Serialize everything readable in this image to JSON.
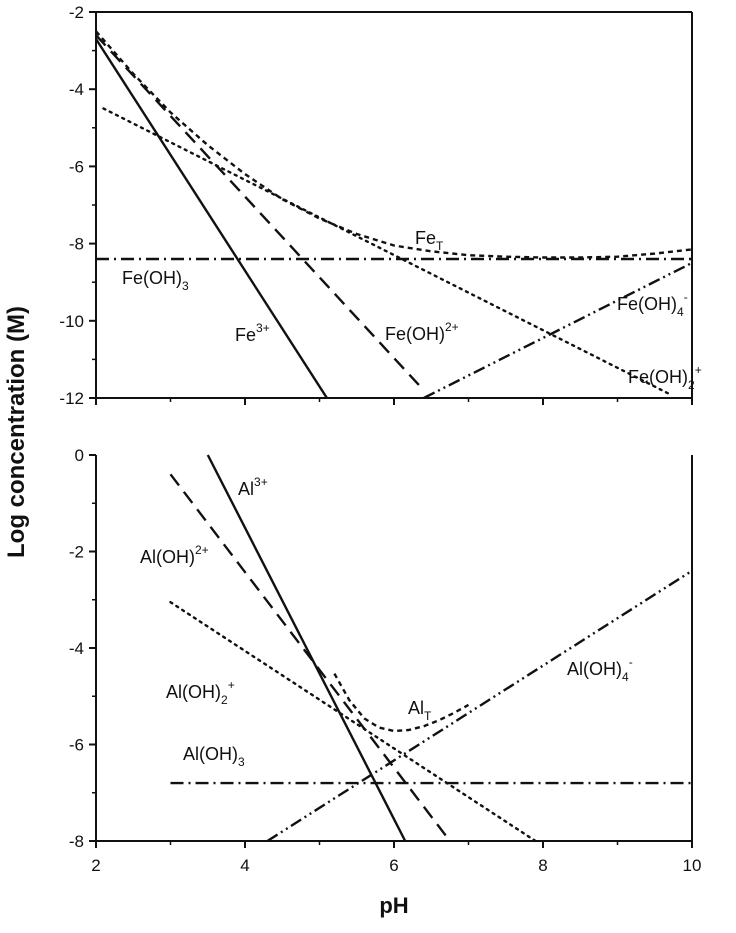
{
  "chart_data": [
    {
      "type": "line",
      "panel": "top",
      "title": "",
      "xlabel": "pH",
      "ylabel": "Log concentration (M)",
      "xlim": [
        2,
        10
      ],
      "ylim": [
        -12,
        -2
      ],
      "xticks": [
        2,
        4,
        6,
        8,
        10
      ],
      "yticks": [
        -2,
        -4,
        -6,
        -8,
        -10,
        -12
      ],
      "ytick_labels": [
        "-2",
        "-4",
        "-6",
        "-8",
        "-10",
        "-12"
      ],
      "grid": false,
      "series": [
        {
          "key": "fe3",
          "name": "Fe3+",
          "style": "solid",
          "x": [
            2.0,
            5.1
          ],
          "y": [
            -2.7,
            -12.0
          ]
        },
        {
          "key": "feoh2",
          "name": "Fe(OH)2+",
          "style": "dash",
          "x": [
            2.0,
            6.4
          ],
          "y": [
            -2.6,
            -11.8
          ]
        },
        {
          "key": "feoh2plus",
          "name": "Fe(OH)2+",
          "style": "dot",
          "x": [
            2.1,
            9.7
          ],
          "y": [
            -4.5,
            -11.9
          ]
        },
        {
          "key": "feoh3",
          "name": "Fe(OH)3",
          "style": "dashdot",
          "x": [
            2.0,
            10.0
          ],
          "y": [
            -8.4,
            -8.4
          ]
        },
        {
          "key": "feoh4",
          "name": "Fe(OH)4-",
          "style": "dashdotdot",
          "x": [
            6.4,
            10.0
          ],
          "y": [
            -12.0,
            -8.5
          ]
        },
        {
          "key": "fet",
          "name": "FeT",
          "style": "shortdash",
          "x": [
            2.0,
            2.5,
            3.0,
            3.5,
            4.0,
            4.5,
            5.0,
            5.5,
            6.0,
            6.5,
            7.0,
            7.5,
            8.0,
            8.5,
            9.0,
            9.5,
            10.0
          ],
          "y": [
            -2.5,
            -3.6,
            -4.6,
            -5.45,
            -6.2,
            -6.85,
            -7.35,
            -7.75,
            -8.05,
            -8.2,
            -8.3,
            -8.34,
            -8.36,
            -8.36,
            -8.34,
            -8.26,
            -8.15
          ]
        }
      ],
      "labels": [
        {
          "base": "Fe",
          "sup": "3+",
          "sub": ""
        },
        {
          "base": "Fe(OH)",
          "sup": "2+",
          "sub": ""
        },
        {
          "base": "Fe(OH)",
          "sup": "+",
          "sub": "2"
        },
        {
          "base": "Fe(OH)",
          "sup": "",
          "sub": "3"
        },
        {
          "base": "Fe(OH)",
          "sup": "-",
          "sub": "4"
        },
        {
          "base": "Fe",
          "sup": "",
          "sub": "T"
        }
      ]
    },
    {
      "type": "line",
      "panel": "bottom",
      "title": "",
      "xlabel": "pH",
      "ylabel": "Log concentration (M)",
      "xlim": [
        2,
        10
      ],
      "ylim": [
        -8,
        0
      ],
      "xticks": [
        2,
        4,
        6,
        8,
        10
      ],
      "xtick_labels": [
        "2",
        "4",
        "6",
        "8",
        "10"
      ],
      "yticks": [
        0,
        -2,
        -4,
        -6,
        -8
      ],
      "ytick_labels": [
        "0",
        "-2",
        "-4",
        "-6",
        "-8"
      ],
      "grid": false,
      "series": [
        {
          "key": "al3",
          "name": "Al3+",
          "style": "solid",
          "x": [
            3.5,
            6.15
          ],
          "y": [
            0.0,
            -8.0
          ]
        },
        {
          "key": "aloh2",
          "name": "Al(OH)2+",
          "style": "dash",
          "x": [
            3.0,
            6.75
          ],
          "y": [
            -0.4,
            -8.0
          ]
        },
        {
          "key": "aloh2plus",
          "name": "Al(OH)2+",
          "style": "dot",
          "x": [
            3.0,
            7.9
          ],
          "y": [
            -3.05,
            -8.0
          ]
        },
        {
          "key": "aloh3",
          "name": "Al(OH)3",
          "style": "dashdot",
          "x": [
            3.0,
            10.0
          ],
          "y": [
            -6.8,
            -6.8
          ]
        },
        {
          "key": "aloh4",
          "name": "Al(OH)4-",
          "style": "dashdotdot",
          "x": [
            4.3,
            10.0
          ],
          "y": [
            -8.0,
            -2.4
          ]
        },
        {
          "key": "alt",
          "name": "AlT",
          "style": "shortdash",
          "x": [
            5.2,
            5.4,
            5.6,
            5.8,
            6.0,
            6.2,
            6.4,
            6.6,
            6.8,
            7.0
          ],
          "y": [
            -4.53,
            -5.08,
            -5.46,
            -5.65,
            -5.72,
            -5.7,
            -5.62,
            -5.5,
            -5.35,
            -5.18
          ]
        }
      ],
      "labels": [
        {
          "base": "Al",
          "sup": "3+",
          "sub": ""
        },
        {
          "base": "Al(OH)",
          "sup": "2+",
          "sub": ""
        },
        {
          "base": "Al(OH)",
          "sup": "+",
          "sub": "2"
        },
        {
          "base": "Al(OH)",
          "sup": "",
          "sub": "3"
        },
        {
          "base": "Al(OH)",
          "sup": "-",
          "sub": "4"
        },
        {
          "base": "Al",
          "sup": "",
          "sub": "T"
        }
      ]
    }
  ]
}
